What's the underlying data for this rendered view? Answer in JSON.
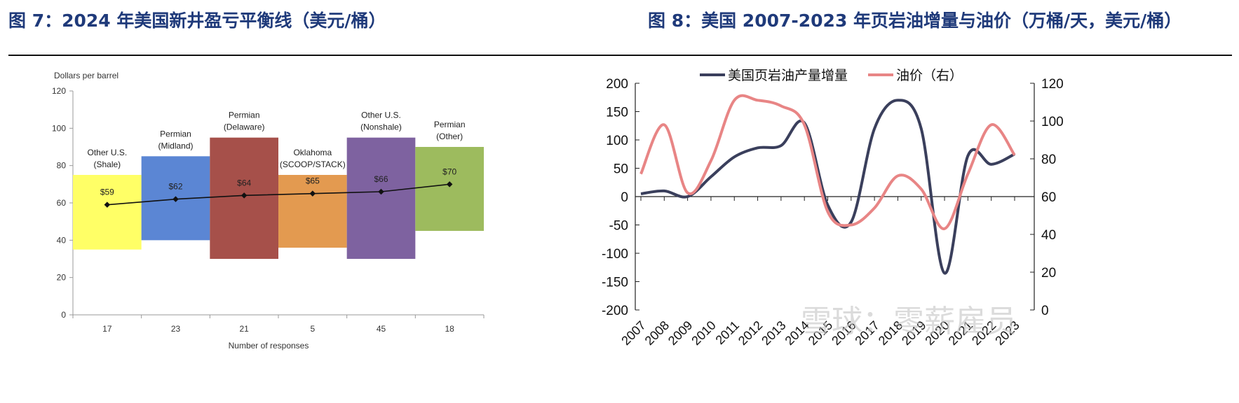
{
  "figures": [
    {
      "caption": "图 7：2024 年美国新井盈亏平衡线（美元/桶）",
      "chart_data": {
        "type": "bar",
        "title": "",
        "ylabel": "Dollars per barrel",
        "xlabel": "Number of responses",
        "ylim": [
          0,
          120
        ],
        "yticks": [
          "0",
          "20",
          "40",
          "60",
          "80",
          "100",
          "120"
        ],
        "colors": [
          "#ffff66",
          "#5b86d4",
          "#a6504a",
          "#e39a50",
          "#7e62a0",
          "#9dbb5e"
        ],
        "categories": [
          {
            "name": "Other U.S. (Shale)",
            "label_lines": [
              "Other U.S.",
              "(Shale)"
            ],
            "responses": 17,
            "responses_label": "17",
            "low": 35,
            "high": 75,
            "mean": 59,
            "mean_label": "$59"
          },
          {
            "name": "Permian (Midland)",
            "label_lines": [
              "Permian",
              "(Midland)"
            ],
            "responses": 23,
            "responses_label": "23",
            "low": 40,
            "high": 85,
            "mean": 62,
            "mean_label": "$62"
          },
          {
            "name": "Permian (Delaware)",
            "label_lines": [
              "Permian",
              "(Delaware)"
            ],
            "responses": 21,
            "responses_label": "21",
            "low": 30,
            "high": 95,
            "mean": 64,
            "mean_label": "$64"
          },
          {
            "name": "Oklahoma (SCOOP/STACK)",
            "label_lines": [
              "Oklahoma",
              "(SCOOP/STACK)"
            ],
            "responses": 5,
            "responses_label": "5",
            "low": 36,
            "high": 75,
            "mean": 65,
            "mean_label": "$65"
          },
          {
            "name": "Other U.S. (Nonshale)",
            "label_lines": [
              "Other U.S.",
              "(Nonshale)"
            ],
            "responses": 45,
            "responses_label": "45",
            "low": 30,
            "high": 95,
            "mean": 66,
            "mean_label": "$66"
          },
          {
            "name": "Permian (Other)",
            "label_lines": [
              "Permian",
              "(Other)"
            ],
            "responses": 18,
            "responses_label": "18",
            "low": 45,
            "high": 90,
            "mean": 70,
            "mean_label": "$70"
          }
        ]
      }
    },
    {
      "caption": "图 8：美国 2007-2023 年页岩油增量与油价（万桶/天，美元/桶）",
      "chart_data": {
        "type": "line",
        "title": "",
        "x": [
          "2007",
          "2008",
          "2009",
          "2010",
          "2011",
          "2012",
          "2013",
          "2014",
          "2015",
          "2016",
          "2017",
          "2018",
          "2019",
          "2020",
          "2021",
          "2022",
          "2023"
        ],
        "ylim_left": [
          -200,
          200
        ],
        "ylim_right": [
          0,
          120
        ],
        "yticks_left": [
          "200",
          "150",
          "100",
          "50",
          "0",
          "-50",
          "-100",
          "-150",
          "-200"
        ],
        "yticks_right": [
          "120",
          "100",
          "80",
          "60",
          "40",
          "20",
          "0"
        ],
        "legend_position": "top",
        "series": [
          {
            "name": "美国页岩油产量增量",
            "axis": "left",
            "color": "#3a3f5c",
            "values": [
              5,
              10,
              0,
              35,
              70,
              86,
              90,
              130,
              -15,
              -45,
              120,
              170,
              120,
              -135,
              72,
              57,
              75
            ]
          },
          {
            "name": "油价（右）",
            "axis": "right",
            "color": "#e88585",
            "values": [
              72,
              98,
              62,
              79,
              111,
              111,
              108,
              98,
              52,
              45,
              54,
              71,
              64,
              43,
              72,
              98,
              82
            ]
          }
        ]
      }
    }
  ],
  "watermark": "雪球：零薪雇员"
}
